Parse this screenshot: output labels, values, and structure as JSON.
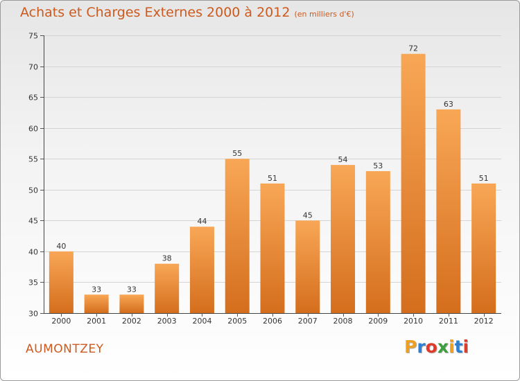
{
  "header": {
    "title": "Achats et Charges Externes 2000 à 2012",
    "subtitle": "(en milliers d'€)"
  },
  "commune": "AUMONTZEY",
  "logo": {
    "letters": [
      "P",
      "r",
      "o",
      "x",
      "i",
      "t",
      "i"
    ],
    "colors": [
      "#f0a020",
      "#2f7fd0",
      "#e03a2a",
      "#3b9f3b",
      "#f0a020",
      "#2f7fd0",
      "#e03a2a"
    ]
  },
  "colors": {
    "bar_top": "#f8a756",
    "bar_bottom": "#d46e1d",
    "title": "#cc5a1e"
  },
  "chart_data": {
    "type": "bar",
    "categories": [
      "2000",
      "2001",
      "2002",
      "2003",
      "2004",
      "2005",
      "2006",
      "2007",
      "2008",
      "2009",
      "2010",
      "2011",
      "2012"
    ],
    "values": [
      40,
      33,
      33,
      38,
      44,
      55,
      51,
      45,
      54,
      53,
      72,
      63,
      51
    ],
    "ylim": [
      30,
      75
    ],
    "yticks": [
      30,
      35,
      40,
      45,
      50,
      55,
      60,
      65,
      70,
      75
    ],
    "grid": true,
    "legend": "none"
  }
}
